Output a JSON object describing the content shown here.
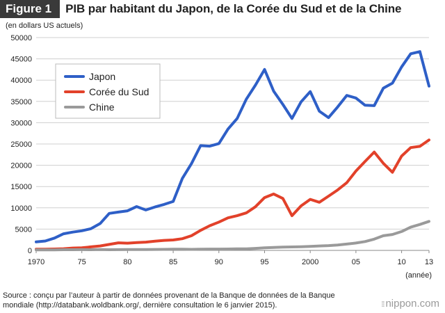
{
  "header": {
    "badge": "Figure 1",
    "title": "PIB par habitant du Japon, de la Corée du Sud et de la Chine"
  },
  "unit_label": "(en dollars US actuels)",
  "footer": {
    "source": "Source : conçu par l’auteur à partir de données provenant de la Banque de données de la Banque mondiale (http://databank.woldbank.org/, dernière consultation le 6 janvier 2015).",
    "brand": "nippon.com"
  },
  "chart_data": {
    "type": "line",
    "title": "PIB par habitant du Japon, de la Corée du Sud et de la Chine",
    "ylabel": "(en dollars US actuels)",
    "xlabel": "(année)",
    "ylim": [
      0,
      50000
    ],
    "xlim": [
      1970,
      2013
    ],
    "y_ticks": [
      0,
      5000,
      10000,
      15000,
      20000,
      25000,
      30000,
      35000,
      40000,
      45000,
      50000
    ],
    "y_tick_labels": [
      "0",
      "5000",
      "10000",
      "15000",
      "20000",
      "25000",
      "30000",
      "35000",
      "40000",
      "45000",
      "50000"
    ],
    "x_ticks": [
      1970,
      1975,
      1980,
      1985,
      1990,
      1995,
      2000,
      2005,
      2010,
      2013
    ],
    "x_tick_labels": [
      "1970",
      "75",
      "80",
      "85",
      "90",
      "95",
      "2000",
      "05",
      "10",
      "13"
    ],
    "grid": true,
    "legend_position": "top-left",
    "x": [
      1970,
      1971,
      1972,
      1973,
      1974,
      1975,
      1976,
      1977,
      1978,
      1979,
      1980,
      1981,
      1982,
      1983,
      1984,
      1985,
      1986,
      1987,
      1988,
      1989,
      1990,
      1991,
      1992,
      1993,
      1994,
      1995,
      1996,
      1997,
      1998,
      1999,
      2000,
      2001,
      2002,
      2003,
      2004,
      2005,
      2006,
      2007,
      2008,
      2009,
      2010,
      2011,
      2012,
      2013
    ],
    "series": [
      {
        "name": "Japon",
        "color": "#2e5fc7",
        "values": [
          2000,
          2200,
          2900,
          3900,
          4300,
          4600,
          5100,
          6300,
          8700,
          9000,
          9300,
          10300,
          9500,
          10200,
          10800,
          11500,
          16900,
          20400,
          24600,
          24500,
          25100,
          28500,
          31000,
          35500,
          38800,
          42500,
          37400,
          34300,
          31000,
          34900,
          37300,
          32700,
          31200,
          33700,
          36400,
          35800,
          34100,
          34000,
          38100,
          39300,
          43100,
          46200,
          46700,
          38600
        ]
      },
      {
        "name": "Corée du Sud",
        "color": "#e2412a",
        "values": [
          280,
          300,
          320,
          400,
          560,
          610,
          830,
          1050,
          1400,
          1780,
          1700,
          1850,
          1950,
          2150,
          2350,
          2450,
          2750,
          3450,
          4700,
          5800,
          6650,
          7650,
          8150,
          8800,
          10250,
          12400,
          13250,
          12200,
          8150,
          10450,
          12000,
          11300,
          12750,
          14200,
          15900,
          18650,
          20900,
          23100,
          20450,
          18350,
          22150,
          24150,
          24450,
          25950
        ]
      },
      {
        "name": "Chine",
        "color": "#9a9a9a",
        "values": [
          110,
          120,
          130,
          160,
          170,
          180,
          170,
          190,
          160,
          180,
          195,
          200,
          205,
          225,
          250,
          290,
          280,
          250,
          280,
          310,
          315,
          330,
          365,
          375,
          470,
          605,
          700,
          770,
          820,
          860,
          950,
          1040,
          1130,
          1270,
          1490,
          1730,
          2070,
          2650,
          3440,
          3740,
          4430,
          5450,
          6090,
          6810
        ]
      }
    ]
  }
}
